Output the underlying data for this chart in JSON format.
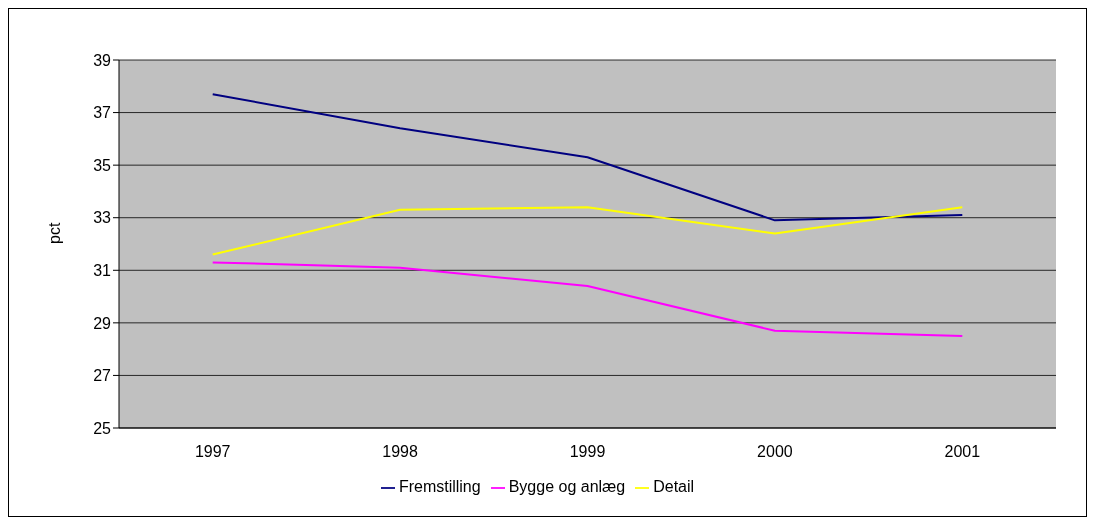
{
  "chart_data": {
    "type": "line",
    "ylabel": "pct",
    "categories": [
      "1997",
      "1998",
      "1999",
      "2000",
      "2001"
    ],
    "series": [
      {
        "name": "Fremstilling",
        "color": "#000080",
        "values": [
          37.7,
          36.4,
          35.3,
          32.9,
          33.1
        ]
      },
      {
        "name": "Bygge og anlæg",
        "color": "#ff00ff",
        "values": [
          31.3,
          31.1,
          30.4,
          28.7,
          28.5
        ]
      },
      {
        "name": "Detail",
        "color": "#ffff00",
        "values": [
          31.6,
          33.3,
          33.4,
          32.4,
          33.4
        ]
      }
    ],
    "ylim": [
      25,
      39
    ],
    "yticks": [
      25,
      27,
      29,
      31,
      33,
      35,
      37,
      39
    ],
    "grid": "y",
    "legend": "bottom",
    "marker": "none",
    "line_style": "solid"
  }
}
